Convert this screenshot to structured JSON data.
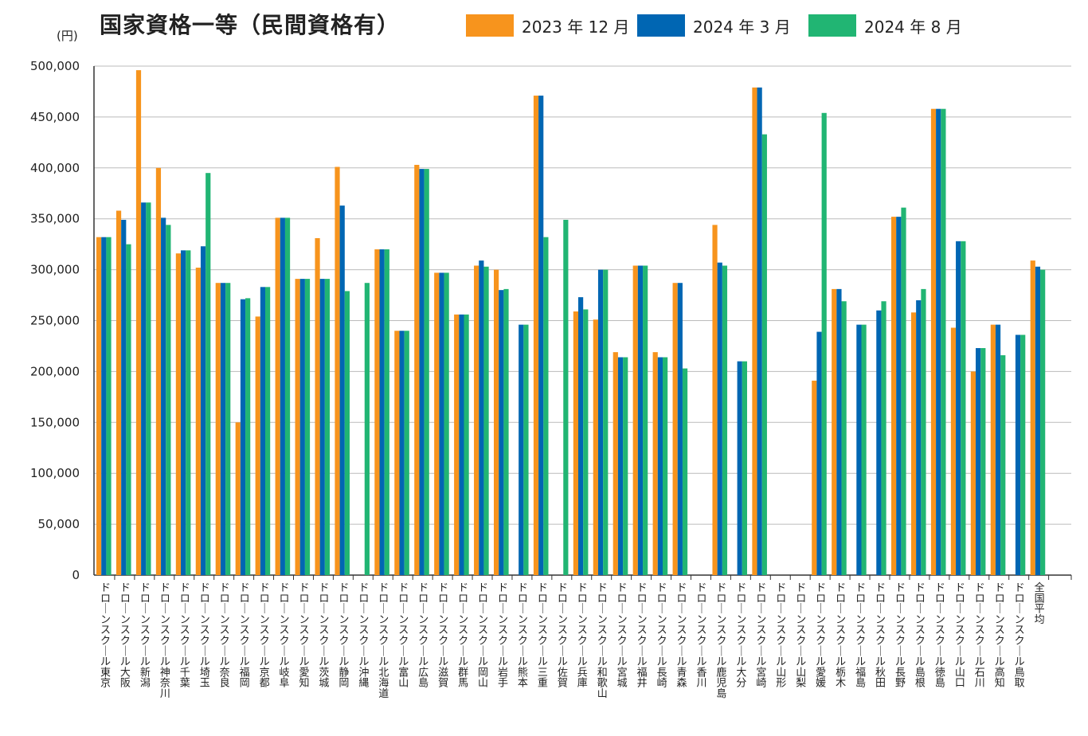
{
  "title": "国家資格一等（民間資格有）",
  "unit": "(円)",
  "chart_data": {
    "type": "bar",
    "title": "国家資格一等（民間資格有）",
    "ylabel": "(円)",
    "ylim": [
      0,
      500000
    ],
    "yticks": [
      0,
      50000,
      100000,
      150000,
      200000,
      250000,
      300000,
      350000,
      400000,
      450000,
      500000
    ],
    "ytick_labels": [
      "0",
      "50,000",
      "100,000",
      "150,000",
      "200,000",
      "250,000",
      "300,000",
      "350,000",
      "400,000",
      "450,000",
      "500,000"
    ],
    "legend_position": "top",
    "categories": [
      "ドローンスクール東京",
      "ドローンスクール大阪",
      "ドローンスクール新潟",
      "ドローンスクール神奈川",
      "ドローンスクール千葉",
      "ドローンスクール埼玉",
      "ドローンスクール奈良",
      "ドローンスクール福岡",
      "ドローンスクール京都",
      "ドローンスクール岐阜",
      "ドローンスクール愛知",
      "ドローンスクール茨城",
      "ドローンスクール静岡",
      "ドローンスクール沖縄",
      "ドローンスクール北海道",
      "ドローンスクール富山",
      "ドローンスクール広島",
      "ドローンスクール滋賀",
      "ドローンスクール群馬",
      "ドローンスクール岡山",
      "ドローンスクール岩手",
      "ドローンスクール熊本",
      "ドローンスクール三重",
      "ドローンスクール佐賀",
      "ドローンスクール兵庫",
      "ドローンスクール和歌山",
      "ドローンスクール宮城",
      "ドローンスクール福井",
      "ドローンスクール長崎",
      "ドローンスクール青森",
      "ドローンスクール香川",
      "ドローンスクール鹿児島",
      "ドローンスクール大分",
      "ドローンスクール宮崎",
      "ドローンスクール山形",
      "ドローンスクール山梨",
      "ドローンスクール愛媛",
      "ドローンスクール栃木",
      "ドローンスクール福島",
      "ドローンスクール秋田",
      "ドローンスクール長野",
      "ドローンスクール島根",
      "ドローンスクール徳島",
      "ドローンスクール山口",
      "ドローンスクール石川",
      "ドローンスクール高知",
      "ドローンスクール鳥取",
      "全国平均"
    ],
    "series": [
      {
        "name": "2023 年 12 月",
        "color": "#F7941D",
        "values": [
          332000,
          358000,
          496000,
          400000,
          316000,
          302000,
          287000,
          150000,
          254000,
          351000,
          291000,
          331000,
          401000,
          0,
          320000,
          240000,
          403000,
          297000,
          256000,
          304000,
          300000,
          0,
          471000,
          0,
          259000,
          251000,
          219000,
          304000,
          219000,
          287000,
          0,
          344000,
          0,
          479000,
          0,
          0,
          191000,
          281000,
          0,
          0,
          352000,
          258000,
          458000,
          243000,
          200000,
          246000,
          0,
          309000
        ]
      },
      {
        "name": "2024 年 3 月",
        "color": "#0066B3",
        "values": [
          332000,
          349000,
          366000,
          351000,
          319000,
          323000,
          287000,
          271000,
          283000,
          351000,
          291000,
          291000,
          363000,
          0,
          320000,
          240000,
          399000,
          297000,
          256000,
          309000,
          280000,
          246000,
          471000,
          0,
          273000,
          300000,
          214000,
          304000,
          214000,
          287000,
          0,
          307000,
          210000,
          479000,
          0,
          0,
          239000,
          281000,
          246000,
          260000,
          352000,
          270000,
          458000,
          328000,
          223000,
          246000,
          236000,
          303000
        ]
      },
      {
        "name": "2024 年 8 月",
        "color": "#21B573",
        "values": [
          332000,
          325000,
          366000,
          344000,
          319000,
          395000,
          287000,
          272000,
          283000,
          351000,
          291000,
          291000,
          279000,
          287000,
          320000,
          240000,
          399000,
          297000,
          256000,
          303000,
          281000,
          246000,
          332000,
          349000,
          261000,
          300000,
          214000,
          304000,
          214000,
          203000,
          0,
          304000,
          210000,
          433000,
          0,
          0,
          454000,
          269000,
          246000,
          269000,
          361000,
          281000,
          458000,
          328000,
          223000,
          216000,
          236000,
          300000
        ]
      }
    ]
  }
}
